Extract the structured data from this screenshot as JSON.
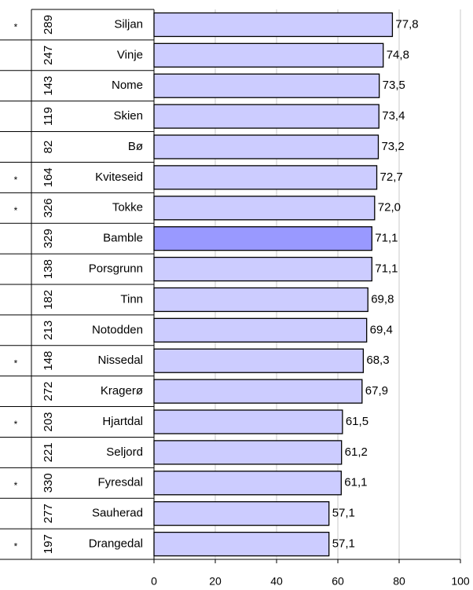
{
  "chart_data": {
    "type": "bar",
    "orientation": "horizontal",
    "markers": [
      "*",
      null,
      null,
      null,
      null,
      "*",
      "*",
      null,
      null,
      null,
      null,
      "*",
      null,
      "*",
      null,
      "*",
      null,
      "*"
    ],
    "counts": [
      "289",
      "247",
      "143",
      "119",
      "82",
      "164",
      "326",
      "329",
      "138",
      "182",
      "213",
      "148",
      "272",
      "203",
      "221",
      "330",
      "277",
      "197"
    ],
    "categories": [
      "Siljan",
      "Vinje",
      "Nome",
      "Skien",
      "Bø",
      "Kviteseid",
      "Tokke",
      "Bamble",
      "Porsgrunn",
      "Tinn",
      "Notodden",
      "Nissedal",
      "Kragerø",
      "Hjartdal",
      "Seljord",
      "Fyresdal",
      "Sauherad",
      "Drangedal"
    ],
    "values": [
      77.8,
      74.8,
      73.5,
      73.4,
      73.2,
      72.7,
      72.0,
      71.1,
      71.1,
      69.8,
      69.4,
      68.3,
      67.9,
      61.5,
      61.2,
      61.1,
      57.1,
      57.1
    ],
    "value_labels": [
      "77,8",
      "74,8",
      "73,5",
      "73,4",
      "73,2",
      "72,7",
      "72,0",
      "71,1",
      "71,1",
      "69,8",
      "69,4",
      "68,3",
      "67,9",
      "61,5",
      "61,2",
      "61,1",
      "57,1",
      "57,1"
    ],
    "bar_colors": [
      "#ccccff",
      "#ccccff",
      "#ccccff",
      "#ccccff",
      "#ccccff",
      "#ccccff",
      "#ccccff",
      "#9999ff",
      "#ccccff",
      "#ccccff",
      "#ccccff",
      "#ccccff",
      "#ccccff",
      "#ccccff",
      "#ccccff",
      "#ccccff",
      "#ccccff",
      "#ccccff"
    ],
    "xlim": [
      0,
      100
    ],
    "xticks": [
      0,
      20,
      40,
      60,
      80,
      100
    ],
    "grid": true
  }
}
